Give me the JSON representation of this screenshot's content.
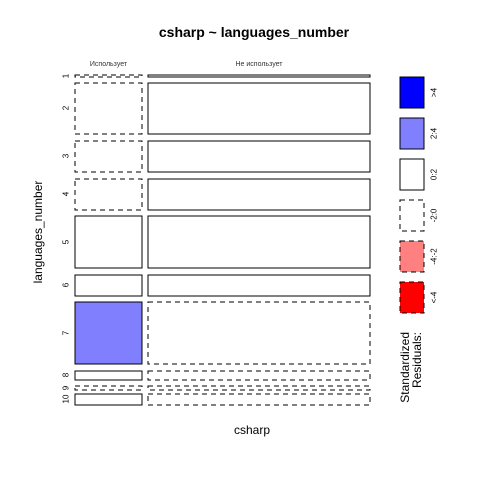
{
  "chart_data": {
    "type": "mosaic",
    "title": "csharp ~ languages_number",
    "xlabel": "csharp",
    "ylabel": "languages_number",
    "columns": [
      "Использует",
      "Не использует"
    ],
    "rows": [
      "1",
      "2",
      "3",
      "4",
      "5",
      "6",
      "7",
      "8",
      "9",
      "10"
    ],
    "residual_class": [
      [
        "neg_0_2",
        "pos_0_2"
      ],
      [
        "neg_0_2",
        "pos_0_2"
      ],
      [
        "neg_0_2",
        "pos_0_2"
      ],
      [
        "neg_0_2",
        "pos_0_2"
      ],
      [
        "pos_0_2",
        "pos_0_2"
      ],
      [
        "pos_0_2",
        "pos_0_2"
      ],
      [
        "pos_2_4",
        "neg_0_2"
      ],
      [
        "pos_0_2",
        "neg_0_2"
      ],
      [
        "neg_0_2",
        "neg_0_2"
      ],
      [
        "pos_0_2",
        "neg_0_2"
      ]
    ],
    "legend": {
      "title_lines": [
        "Standardized",
        "Residuals:"
      ],
      "items": [
        {
          "key": "gt4",
          "label": ">4",
          "fill": "#0000ff",
          "dashed": false
        },
        {
          "key": "pos_2_4",
          "label": "2:4",
          "fill": "#8080ff",
          "dashed": false
        },
        {
          "key": "pos_0_2",
          "label": "0:2",
          "fill": "#ffffff",
          "dashed": false
        },
        {
          "key": "neg_0_2",
          "label": "-2:0",
          "fill": "#ffffff",
          "dashed": true
        },
        {
          "key": "neg_2_4",
          "label": "-4:-2",
          "fill": "#ff8080",
          "dashed": true
        },
        {
          "key": "lt4",
          "label": "<-4",
          "fill": "#ff0000",
          "dashed": true
        }
      ]
    }
  }
}
